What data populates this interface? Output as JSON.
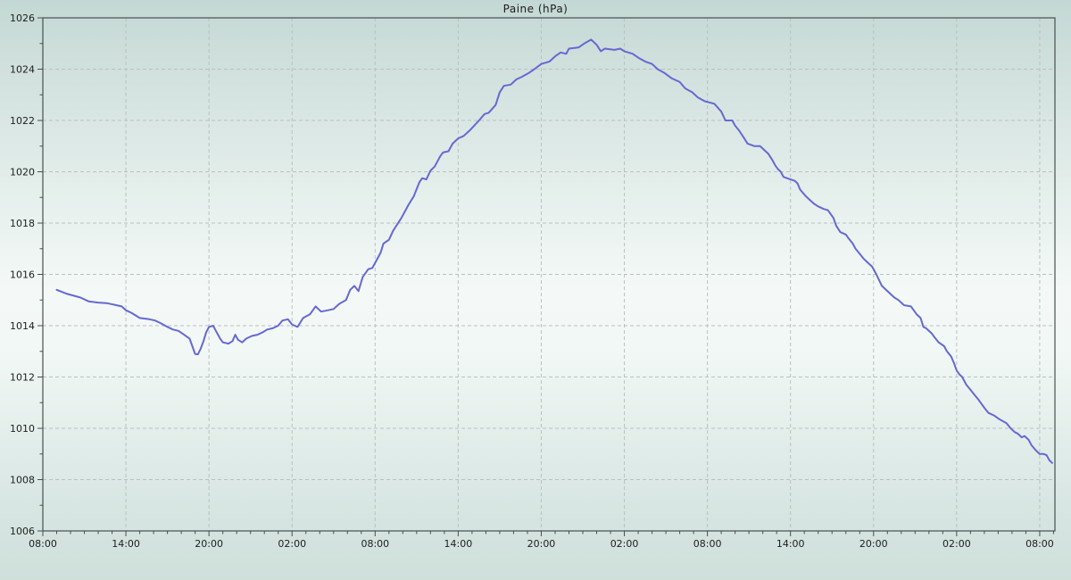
{
  "chart_data": {
    "type": "line",
    "title": "Paine (hPa)",
    "xlabel": "",
    "ylabel": "",
    "x_unit": "hours since first 08:00 tick",
    "xlim": [
      0,
      73.1
    ],
    "ylim": [
      1006,
      1026
    ],
    "grid": "dashed-major-both-axes",
    "legend": "none",
    "x_ticks": {
      "hours": [
        0,
        6,
        12,
        18,
        24,
        30,
        36,
        42,
        48,
        54,
        60,
        66,
        72
      ],
      "labels": [
        "08:00",
        "14:00",
        "20:00",
        "02:00",
        "08:00",
        "14:00",
        "20:00",
        "02:00",
        "08:00",
        "14:00",
        "20:00",
        "02:00",
        "08:00"
      ],
      "minor_step_hours": 1
    },
    "y_ticks": {
      "values": [
        1006,
        1008,
        1010,
        1012,
        1014,
        1016,
        1018,
        1020,
        1022,
        1024,
        1026
      ],
      "labels": [
        "1006",
        "1008",
        "1010",
        "1012",
        "1014",
        "1016",
        "1018",
        "1020",
        "1022",
        "1024",
        "1026"
      ],
      "minor_step": 1
    },
    "colors": {
      "line": "#6668d2",
      "grid": "#b7c2bf",
      "axis": "#45504e",
      "text": "#1d1d1d"
    },
    "series": [
      {
        "name": "Paine",
        "points": [
          [
            1.0,
            1015.4
          ],
          [
            1.7,
            1015.25
          ],
          [
            2.7,
            1015.1
          ],
          [
            3.3,
            1014.95
          ],
          [
            4.0,
            1014.9
          ],
          [
            4.6,
            1014.88
          ],
          [
            5.3,
            1014.8
          ],
          [
            5.7,
            1014.75
          ],
          [
            6.0,
            1014.6
          ],
          [
            6.4,
            1014.5
          ],
          [
            6.7,
            1014.4
          ],
          [
            7.0,
            1014.3
          ],
          [
            7.7,
            1014.25
          ],
          [
            8.1,
            1014.2
          ],
          [
            8.5,
            1014.1
          ],
          [
            9.0,
            1013.95
          ],
          [
            9.4,
            1013.85
          ],
          [
            9.8,
            1013.8
          ],
          [
            10.2,
            1013.65
          ],
          [
            10.6,
            1013.5
          ],
          [
            10.8,
            1013.2
          ],
          [
            11.0,
            1012.9
          ],
          [
            11.2,
            1012.88
          ],
          [
            11.4,
            1013.1
          ],
          [
            11.6,
            1013.4
          ],
          [
            11.8,
            1013.75
          ],
          [
            12.0,
            1013.95
          ],
          [
            12.3,
            1014.0
          ],
          [
            12.5,
            1013.8
          ],
          [
            12.8,
            1013.5
          ],
          [
            13.0,
            1013.35
          ],
          [
            13.4,
            1013.3
          ],
          [
            13.7,
            1013.4
          ],
          [
            13.9,
            1013.65
          ],
          [
            14.1,
            1013.45
          ],
          [
            14.4,
            1013.35
          ],
          [
            14.7,
            1013.5
          ],
          [
            15.1,
            1013.6
          ],
          [
            15.5,
            1013.65
          ],
          [
            15.9,
            1013.75
          ],
          [
            16.2,
            1013.85
          ],
          [
            16.6,
            1013.9
          ],
          [
            17.0,
            1014.0
          ],
          [
            17.3,
            1014.2
          ],
          [
            17.7,
            1014.25
          ],
          [
            18.0,
            1014.05
          ],
          [
            18.4,
            1013.95
          ],
          [
            18.8,
            1014.3
          ],
          [
            19.3,
            1014.45
          ],
          [
            19.7,
            1014.75
          ],
          [
            20.1,
            1014.55
          ],
          [
            20.6,
            1014.6
          ],
          [
            21.0,
            1014.65
          ],
          [
            21.4,
            1014.85
          ],
          [
            21.9,
            1015.0
          ],
          [
            22.2,
            1015.4
          ],
          [
            22.5,
            1015.55
          ],
          [
            22.8,
            1015.35
          ],
          [
            23.1,
            1015.9
          ],
          [
            23.5,
            1016.2
          ],
          [
            23.8,
            1016.25
          ],
          [
            24.0,
            1016.45
          ],
          [
            24.4,
            1016.85
          ],
          [
            24.6,
            1017.2
          ],
          [
            25.0,
            1017.35
          ],
          [
            25.3,
            1017.7
          ],
          [
            25.6,
            1017.95
          ],
          [
            25.9,
            1018.2
          ],
          [
            26.4,
            1018.7
          ],
          [
            26.8,
            1019.05
          ],
          [
            27.2,
            1019.6
          ],
          [
            27.4,
            1019.75
          ],
          [
            27.7,
            1019.7
          ],
          [
            28.0,
            1020.05
          ],
          [
            28.3,
            1020.2
          ],
          [
            28.7,
            1020.6
          ],
          [
            28.9,
            1020.75
          ],
          [
            29.3,
            1020.8
          ],
          [
            29.6,
            1021.1
          ],
          [
            30.0,
            1021.3
          ],
          [
            30.4,
            1021.4
          ],
          [
            30.9,
            1021.65
          ],
          [
            31.5,
            1022.0
          ],
          [
            31.9,
            1022.25
          ],
          [
            32.2,
            1022.3
          ],
          [
            32.7,
            1022.6
          ],
          [
            33.0,
            1023.1
          ],
          [
            33.3,
            1023.35
          ],
          [
            33.8,
            1023.4
          ],
          [
            34.2,
            1023.6
          ],
          [
            34.6,
            1023.7
          ],
          [
            35.1,
            1023.85
          ],
          [
            35.5,
            1024.0
          ],
          [
            36.0,
            1024.2
          ],
          [
            36.6,
            1024.3
          ],
          [
            37.0,
            1024.5
          ],
          [
            37.4,
            1024.65
          ],
          [
            37.8,
            1024.6
          ],
          [
            38.0,
            1024.8
          ],
          [
            38.7,
            1024.85
          ],
          [
            39.1,
            1025.0
          ],
          [
            39.6,
            1025.15
          ],
          [
            40.0,
            1024.95
          ],
          [
            40.3,
            1024.7
          ],
          [
            40.6,
            1024.8
          ],
          [
            41.3,
            1024.75
          ],
          [
            41.7,
            1024.8
          ],
          [
            42.0,
            1024.7
          ],
          [
            42.6,
            1024.6
          ],
          [
            43.0,
            1024.45
          ],
          [
            43.5,
            1024.3
          ],
          [
            44.0,
            1024.2
          ],
          [
            44.4,
            1024.0
          ],
          [
            44.9,
            1023.85
          ],
          [
            45.4,
            1023.65
          ],
          [
            46.0,
            1023.5
          ],
          [
            46.4,
            1023.25
          ],
          [
            46.9,
            1023.1
          ],
          [
            47.3,
            1022.9
          ],
          [
            47.8,
            1022.75
          ],
          [
            48.5,
            1022.65
          ],
          [
            49.0,
            1022.35
          ],
          [
            49.3,
            1022.0
          ],
          [
            49.8,
            1022.0
          ],
          [
            50.0,
            1021.8
          ],
          [
            50.3,
            1021.6
          ],
          [
            50.6,
            1021.35
          ],
          [
            50.9,
            1021.1
          ],
          [
            51.4,
            1021.0
          ],
          [
            51.8,
            1021.0
          ],
          [
            52.0,
            1020.9
          ],
          [
            52.4,
            1020.7
          ],
          [
            52.7,
            1020.45
          ],
          [
            52.9,
            1020.25
          ],
          [
            53.1,
            1020.1
          ],
          [
            53.3,
            1020.0
          ],
          [
            53.5,
            1019.8
          ],
          [
            54.0,
            1019.7
          ],
          [
            54.3,
            1019.65
          ],
          [
            54.5,
            1019.55
          ],
          [
            54.7,
            1019.3
          ],
          [
            55.1,
            1019.05
          ],
          [
            55.4,
            1018.9
          ],
          [
            55.7,
            1018.75
          ],
          [
            56.0,
            1018.65
          ],
          [
            56.4,
            1018.55
          ],
          [
            56.7,
            1018.5
          ],
          [
            57.1,
            1018.2
          ],
          [
            57.3,
            1017.9
          ],
          [
            57.6,
            1017.65
          ],
          [
            58.0,
            1017.55
          ],
          [
            58.2,
            1017.4
          ],
          [
            58.5,
            1017.2
          ],
          [
            58.7,
            1017.0
          ],
          [
            59.0,
            1016.8
          ],
          [
            59.3,
            1016.6
          ],
          [
            59.6,
            1016.45
          ],
          [
            59.9,
            1016.3
          ],
          [
            60.2,
            1016.0
          ],
          [
            60.6,
            1015.55
          ],
          [
            61.1,
            1015.3
          ],
          [
            61.5,
            1015.1
          ],
          [
            61.8,
            1015.0
          ],
          [
            62.2,
            1014.8
          ],
          [
            62.7,
            1014.75
          ],
          [
            62.9,
            1014.6
          ],
          [
            63.1,
            1014.45
          ],
          [
            63.4,
            1014.3
          ],
          [
            63.6,
            1013.95
          ],
          [
            63.8,
            1013.9
          ],
          [
            64.2,
            1013.7
          ],
          [
            64.4,
            1013.55
          ],
          [
            64.7,
            1013.35
          ],
          [
            65.1,
            1013.2
          ],
          [
            65.3,
            1013.0
          ],
          [
            65.6,
            1012.8
          ],
          [
            65.8,
            1012.55
          ],
          [
            66.0,
            1012.25
          ],
          [
            66.2,
            1012.1
          ],
          [
            66.4,
            1012.0
          ],
          [
            66.7,
            1011.7
          ],
          [
            67.0,
            1011.5
          ],
          [
            67.3,
            1011.3
          ],
          [
            67.6,
            1011.1
          ],
          [
            68.0,
            1010.8
          ],
          [
            68.3,
            1010.6
          ],
          [
            68.7,
            1010.5
          ],
          [
            69.1,
            1010.35
          ],
          [
            69.6,
            1010.2
          ],
          [
            69.9,
            1010.0
          ],
          [
            70.2,
            1009.85
          ],
          [
            70.4,
            1009.8
          ],
          [
            70.7,
            1009.65
          ],
          [
            70.9,
            1009.7
          ],
          [
            71.2,
            1009.55
          ],
          [
            71.4,
            1009.35
          ],
          [
            71.7,
            1009.15
          ],
          [
            72.0,
            1009.0
          ],
          [
            72.3,
            1009.0
          ],
          [
            72.5,
            1008.95
          ],
          [
            72.7,
            1008.75
          ],
          [
            72.9,
            1008.65
          ]
        ]
      }
    ]
  }
}
